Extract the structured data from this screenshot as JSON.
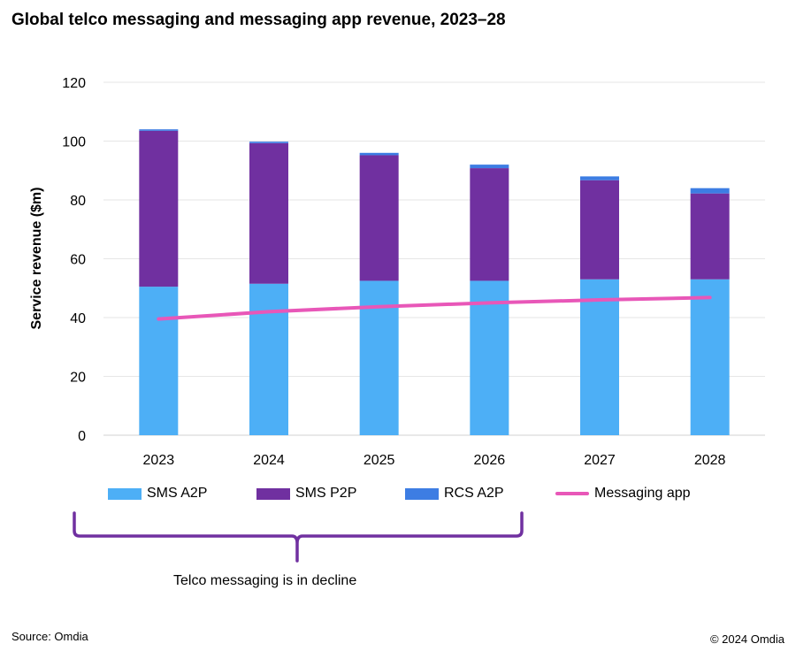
{
  "title": "Global telco messaging and messaging app revenue, 2023–28",
  "source": "Source: Omdia",
  "copyright": "© 2024 Omdia",
  "annotation": "Telco messaging is in decline",
  "colors": {
    "sms_a2p": "#4daff6",
    "sms_p2p": "#7030a0",
    "rcs_a2p": "#3d7de3",
    "messaging_app": "#e857b8",
    "bracket": "#7030a0",
    "grid": "#e6e6e6"
  },
  "chart_data": {
    "type": "bar",
    "stacked": true,
    "categories": [
      "2023",
      "2024",
      "2025",
      "2026",
      "2027",
      "2028"
    ],
    "series": [
      {
        "name": "SMS A2P",
        "type": "bar",
        "values": [
          50.5,
          51.5,
          52.5,
          52.5,
          53,
          53
        ]
      },
      {
        "name": "SMS P2P",
        "type": "bar",
        "values": [
          53,
          47.8,
          42.7,
          38.3,
          33.7,
          29.2
        ]
      },
      {
        "name": "RCS A2P",
        "type": "bar",
        "values": [
          0.5,
          0.5,
          0.8,
          1.2,
          1.3,
          1.8
        ]
      },
      {
        "name": "Messaging app",
        "type": "line",
        "values": [
          39.5,
          42,
          43.7,
          45,
          46,
          46.8
        ]
      }
    ],
    "ylabel": "Service revenue ($m)",
    "xlabel": "",
    "ylim": [
      0,
      120
    ],
    "yticks": [
      "0",
      "20",
      "40",
      "60",
      "80",
      "100",
      "120"
    ],
    "grid": true,
    "legend": "bottom"
  }
}
